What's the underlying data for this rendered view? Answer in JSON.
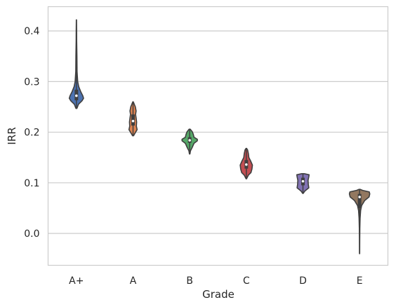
{
  "chart_data": {
    "type": "violin",
    "title": "",
    "xlabel": "Grade",
    "ylabel": "IRR",
    "ylim": [
      -0.063,
      0.448
    ],
    "yticks": [
      0.0,
      0.1,
      0.2,
      0.3,
      0.4
    ],
    "ytick_labels": [
      "0.0",
      "0.1",
      "0.2",
      "0.3",
      "0.4"
    ],
    "grid": "horizontal",
    "categories": [
      "A+",
      "A",
      "B",
      "C",
      "D",
      "E"
    ],
    "series": [
      {
        "category": "A+",
        "color": "#4c72b0",
        "min": 0.247,
        "q1": 0.263,
        "median": 0.272,
        "q3": 0.284,
        "max": 0.422,
        "profile": [
          [
            0.247,
            0.02
          ],
          [
            0.255,
            0.08
          ],
          [
            0.262,
            0.22
          ],
          [
            0.267,
            0.28
          ],
          [
            0.272,
            0.25
          ],
          [
            0.28,
            0.17
          ],
          [
            0.29,
            0.09
          ],
          [
            0.3,
            0.05
          ],
          [
            0.32,
            0.025
          ],
          [
            0.35,
            0.02
          ],
          [
            0.38,
            0.01
          ],
          [
            0.4,
            0.008
          ],
          [
            0.422,
            0.003
          ]
        ]
      },
      {
        "category": "A",
        "color": "#dd8452",
        "min": 0.193,
        "q1": 0.213,
        "median": 0.222,
        "q3": 0.235,
        "max": 0.26,
        "profile": [
          [
            0.193,
            0.02
          ],
          [
            0.2,
            0.1
          ],
          [
            0.205,
            0.16
          ],
          [
            0.212,
            0.13
          ],
          [
            0.22,
            0.14
          ],
          [
            0.228,
            0.12
          ],
          [
            0.235,
            0.1
          ],
          [
            0.242,
            0.12
          ],
          [
            0.25,
            0.09
          ],
          [
            0.255,
            0.05
          ],
          [
            0.26,
            0.01
          ]
        ]
      },
      {
        "category": "B",
        "color": "#55a868",
        "min": 0.157,
        "q1": 0.179,
        "median": 0.184,
        "q3": 0.19,
        "max": 0.206,
        "profile": [
          [
            0.157,
            0.01
          ],
          [
            0.163,
            0.03
          ],
          [
            0.17,
            0.1
          ],
          [
            0.178,
            0.17
          ],
          [
            0.183,
            0.3
          ],
          [
            0.186,
            0.3
          ],
          [
            0.19,
            0.17
          ],
          [
            0.196,
            0.14
          ],
          [
            0.201,
            0.1
          ],
          [
            0.206,
            0.02
          ]
        ]
      },
      {
        "category": "C",
        "color": "#c44e52",
        "min": 0.108,
        "q1": 0.128,
        "median": 0.136,
        "q3": 0.145,
        "max": 0.168,
        "profile": [
          [
            0.108,
            0.01
          ],
          [
            0.115,
            0.08
          ],
          [
            0.12,
            0.18
          ],
          [
            0.127,
            0.22
          ],
          [
            0.135,
            0.24
          ],
          [
            0.143,
            0.17
          ],
          [
            0.15,
            0.1
          ],
          [
            0.158,
            0.08
          ],
          [
            0.165,
            0.05
          ],
          [
            0.168,
            0.01
          ]
        ]
      },
      {
        "category": "D",
        "color": "#8172b3",
        "min": 0.079,
        "q1": 0.095,
        "median": 0.103,
        "q3": 0.11,
        "max": 0.118,
        "profile": [
          [
            0.079,
            0.01
          ],
          [
            0.084,
            0.08
          ],
          [
            0.09,
            0.23
          ],
          [
            0.097,
            0.21
          ],
          [
            0.105,
            0.2
          ],
          [
            0.112,
            0.23
          ],
          [
            0.116,
            0.24
          ],
          [
            0.118,
            0.05
          ]
        ]
      },
      {
        "category": "E",
        "color": "#937860",
        "min": -0.04,
        "q1": 0.05,
        "median": 0.072,
        "q3": 0.078,
        "max": 0.087,
        "profile": [
          [
            -0.04,
            0.003
          ],
          [
            -0.01,
            0.006
          ],
          [
            0.01,
            0.01
          ],
          [
            0.03,
            0.02
          ],
          [
            0.045,
            0.04
          ],
          [
            0.055,
            0.08
          ],
          [
            0.065,
            0.2
          ],
          [
            0.072,
            0.37
          ],
          [
            0.078,
            0.4
          ],
          [
            0.082,
            0.38
          ],
          [
            0.085,
            0.12
          ],
          [
            0.087,
            0.02
          ]
        ]
      }
    ]
  }
}
